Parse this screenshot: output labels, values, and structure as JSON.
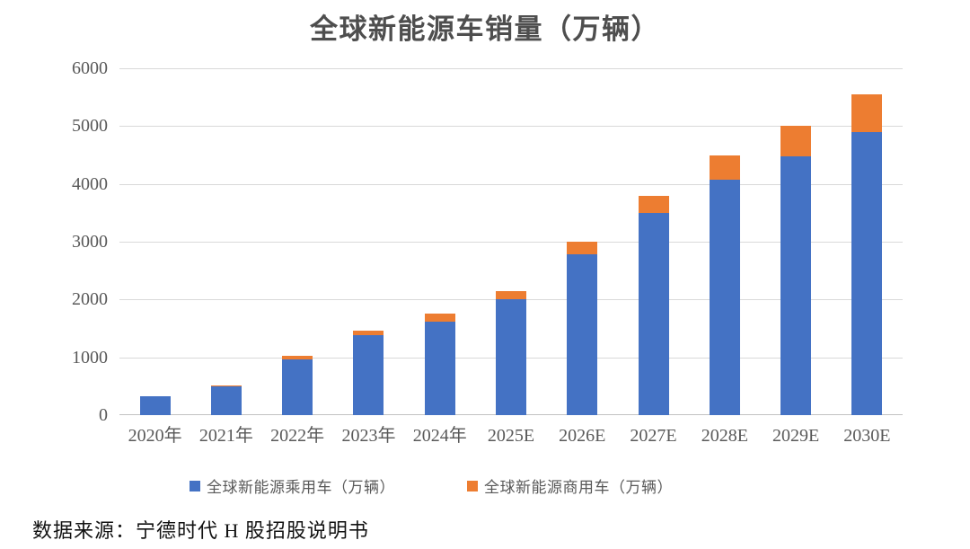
{
  "page": {
    "background": "#ffffff"
  },
  "chart": {
    "title": "全球新能源车销量（万辆）"
  },
  "source_note": "数据来源：宁德时代 H 股招股说明书",
  "chart_data": {
    "type": "bar",
    "stacked": true,
    "title": "全球新能源车销量（万辆）",
    "categories": [
      "2020年",
      "2021年",
      "2022年",
      "2023年",
      "2024年",
      "2025E",
      "2026E",
      "2027E",
      "2028E",
      "2029E",
      "2030E"
    ],
    "series": [
      {
        "id": "passenger",
        "name": "全球新能源乘用车（万辆）",
        "color": "#4472C4",
        "values": [
          320,
          500,
          970,
          1390,
          1620,
          2000,
          2780,
          3490,
          4080,
          4480,
          4900
        ]
      },
      {
        "id": "commercial",
        "name": "全球新能源商用车（万辆）",
        "color": "#ED7D31",
        "values": [
          0,
          10,
          60,
          70,
          140,
          150,
          220,
          310,
          420,
          520,
          650
        ]
      }
    ],
    "totals": [
      320,
      510,
      1030,
      1460,
      1760,
      2150,
      3000,
      3800,
      4500,
      5000,
      5550
    ],
    "xlabel": "",
    "ylabel": "",
    "ylim": [
      0,
      6000
    ],
    "yticks": [
      0,
      1000,
      2000,
      3000,
      4000,
      5000,
      6000
    ],
    "grid": true,
    "legend_position": "bottom",
    "axis_text_color": "#595959",
    "grid_color": "#D9D9D9"
  }
}
